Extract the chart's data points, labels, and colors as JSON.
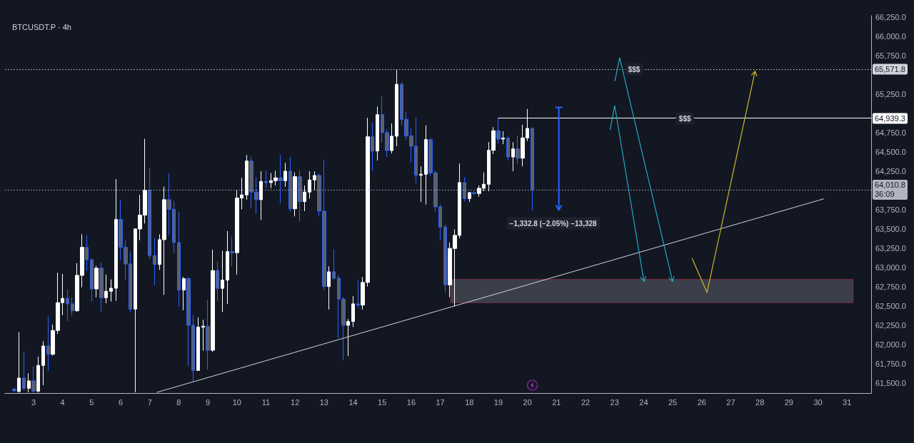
{
  "chart_data": {
    "type": "candlestick",
    "title": "BTCUSDT.P · 4h",
    "x": [
      2.333,
      2.5,
      2.667,
      2.833,
      3,
      3.167,
      3.333,
      3.5,
      3.667,
      3.833,
      4,
      4.167,
      4.333,
      4.5,
      4.667,
      4.833,
      5,
      5.167,
      5.333,
      5.5,
      5.667,
      5.833,
      6,
      6.167,
      6.333,
      6.5,
      6.667,
      6.833,
      7,
      7.167,
      7.333,
      7.5,
      7.667,
      7.833,
      8,
      8.167,
      8.333,
      8.5,
      8.667,
      8.833,
      9,
      9.167,
      9.333,
      9.5,
      9.667,
      9.833,
      10,
      10.167,
      10.333,
      10.5,
      10.667,
      10.833,
      11,
      11.167,
      11.333,
      11.5,
      11.667,
      11.833,
      12,
      12.167,
      12.333,
      12.5,
      12.667,
      12.833,
      13,
      13.167,
      13.333,
      13.5,
      13.667,
      13.833,
      14,
      14.167,
      14.333,
      14.5,
      14.667,
      14.833,
      15,
      15.167,
      15.333,
      15.5,
      15.667,
      15.833,
      16,
      16.167,
      16.333,
      16.5,
      16.667,
      16.833,
      17,
      17.167,
      17.333,
      17.5,
      17.667,
      17.833,
      18,
      18.167,
      18.333,
      18.5,
      18.667,
      18.833,
      19,
      19.167,
      19.333,
      19.5,
      19.667,
      19.833,
      20,
      20.167
    ],
    "ohlc": [
      [
        61420,
        61440,
        61385,
        61400
      ],
      [
        61390,
        62160,
        61375,
        61565
      ],
      [
        61565,
        61905,
        61410,
        61432
      ],
      [
        61432,
        61627,
        61380,
        61528
      ],
      [
        61528,
        61719,
        61375,
        61395
      ],
      [
        61395,
        61843,
        61375,
        61729
      ],
      [
        61729,
        62043,
        61472,
        61981
      ],
      [
        61981,
        62368,
        61657,
        61873
      ],
      [
        61873,
        62259,
        61858,
        62182
      ],
      [
        62182,
        62932,
        62136,
        62543
      ],
      [
        62543,
        62917,
        62382,
        62599
      ],
      [
        62599,
        62713,
        62305,
        62528
      ],
      [
        62528,
        62614,
        62377,
        62438
      ],
      [
        62438,
        63056,
        62425,
        62898
      ],
      [
        62898,
        63432,
        62744,
        63262
      ],
      [
        63262,
        63417,
        62954,
        63099
      ],
      [
        63099,
        63120,
        62558,
        62722
      ],
      [
        62722,
        63021,
        62614,
        62991
      ],
      [
        62991,
        63062,
        62429,
        62608
      ],
      [
        62608,
        62907,
        62537,
        62691
      ],
      [
        62691,
        62845,
        62558,
        62731
      ],
      [
        62731,
        64148,
        62567,
        63623
      ],
      [
        63623,
        63880,
        63093,
        63262
      ],
      [
        63262,
        63355,
        62845,
        63046
      ],
      [
        63046,
        63206,
        62420,
        62460
      ],
      [
        62460,
        63509,
        61380,
        63500
      ],
      [
        63500,
        63942,
        63355,
        63679
      ],
      [
        63679,
        64670,
        63571,
        64003
      ],
      [
        64003,
        64296,
        63108,
        63155
      ],
      [
        63155,
        63386,
        62769,
        63040
      ],
      [
        63040,
        63432,
        62969,
        63361
      ],
      [
        63361,
        64049,
        62645,
        63880
      ],
      [
        63880,
        64219,
        63417,
        63756
      ],
      [
        63756,
        63864,
        63185,
        63324
      ],
      [
        63324,
        63725,
        62491,
        62707
      ],
      [
        62707,
        62877,
        62444,
        62855
      ],
      [
        62855,
        62877,
        61719,
        62250
      ],
      [
        62250,
        62382,
        61519,
        61664
      ],
      [
        61664,
        62352,
        61660,
        62225
      ],
      [
        62225,
        62321,
        61919,
        62238
      ],
      [
        62238,
        62583,
        61673,
        61926
      ],
      [
        61926,
        63231,
        61905,
        62960
      ],
      [
        62960,
        63077,
        62567,
        62729
      ],
      [
        62729,
        63216,
        62423,
        62836
      ],
      [
        62836,
        63472,
        62528,
        63206
      ],
      [
        63206,
        63401,
        63016,
        63192
      ],
      [
        63192,
        64003,
        62907,
        63901
      ],
      [
        63901,
        64164,
        63756,
        63942
      ],
      [
        63942,
        64460,
        63880,
        64382
      ],
      [
        64382,
        64435,
        63771,
        63979
      ],
      [
        63979,
        64173,
        63694,
        63880
      ],
      [
        63880,
        64250,
        63617,
        64117
      ],
      [
        64117,
        64256,
        64030,
        64102
      ],
      [
        64102,
        64225,
        64030,
        64127
      ],
      [
        64127,
        64256,
        64065,
        64164
      ],
      [
        64164,
        64460,
        63833,
        64127
      ],
      [
        64127,
        64358,
        64049,
        64250
      ],
      [
        64250,
        64435,
        63725,
        63762
      ],
      [
        63762,
        64234,
        63664,
        64179
      ],
      [
        64179,
        64266,
        63602,
        63855
      ],
      [
        63855,
        64065,
        63731,
        63979
      ],
      [
        63979,
        64250,
        63895,
        64136
      ],
      [
        64136,
        64250,
        64003,
        64194
      ],
      [
        64194,
        64220,
        63664,
        63731
      ],
      [
        63731,
        64398,
        62706,
        62753
      ],
      [
        62753,
        63016,
        62454,
        62944
      ],
      [
        62944,
        63238,
        62840,
        62861
      ],
      [
        62861,
        62900,
        62090,
        62590
      ],
      [
        62590,
        62620,
        61796,
        62250
      ],
      [
        62250,
        62330,
        61849,
        62299
      ],
      [
        62299,
        62630,
        62229,
        62528
      ],
      [
        62528,
        62836,
        62480,
        62512
      ],
      [
        62512,
        62877,
        62454,
        62806
      ],
      [
        62806,
        64944,
        62753,
        64697
      ],
      [
        64697,
        64883,
        64256,
        64512
      ],
      [
        64512,
        65090,
        64389,
        64984
      ],
      [
        64984,
        65222,
        64620,
        64750
      ],
      [
        64750,
        64790,
        64435,
        64518
      ],
      [
        64518,
        64870,
        64480,
        64704
      ],
      [
        64704,
        65571.8,
        64574,
        65377
      ],
      [
        65377,
        65410,
        64852,
        64923
      ],
      [
        64923,
        65021,
        64651,
        64707
      ],
      [
        64707,
        64806,
        64358,
        64574
      ],
      [
        64574,
        64944,
        64095,
        64197
      ],
      [
        64197,
        64312,
        63849,
        64210
      ],
      [
        64210,
        64843,
        63818,
        64660
      ],
      [
        64660,
        64680,
        64180,
        64229
      ],
      [
        64229,
        64260,
        63725,
        63787
      ],
      [
        63787,
        63820,
        63355,
        63525
      ],
      [
        63525,
        63560,
        62676,
        62775
      ],
      [
        62775,
        63324,
        62614,
        63247
      ],
      [
        63247,
        63494,
        62491,
        63417
      ],
      [
        63417,
        64349,
        63380,
        64102
      ],
      [
        64102,
        64173,
        63860,
        63895
      ],
      [
        63895,
        63980,
        63849,
        63972
      ],
      [
        63972,
        63990,
        63940,
        63960
      ],
      [
        63960,
        64065,
        63920,
        64028
      ],
      [
        64028,
        64234,
        63990,
        64080
      ],
      [
        64080,
        64627,
        63990,
        64521
      ],
      [
        64521,
        64821,
        64472,
        64775
      ],
      [
        64775,
        64939.3,
        64605,
        64667
      ],
      [
        64667,
        64768,
        64600,
        64680
      ],
      [
        64680,
        64700,
        64390,
        64435
      ],
      [
        64435,
        64627,
        64250,
        64540
      ],
      [
        64540,
        64713,
        64340,
        64419
      ],
      [
        64419,
        64852,
        64312,
        64682
      ],
      [
        64682,
        65058,
        64640,
        64805
      ],
      [
        64805,
        64820,
        63741,
        64010.8
      ]
    ],
    "colors": [
      "#2962ff",
      "#ffffff",
      "#2962ff",
      "#ffffff",
      "#2962ff",
      "#ffffff",
      "#ffffff",
      "#2962ff",
      "#ffffff",
      "#ffffff",
      "#ffffff",
      "#2962ff",
      "#2962ff",
      "#ffffff",
      "#ffffff",
      "#2962ff",
      "#2962ff",
      "#ffffff",
      "#2962ff",
      "#ffffff",
      "#ffffff",
      "#ffffff",
      "#2962ff",
      "#2962ff",
      "#2962ff",
      "#ffffff",
      "#ffffff",
      "#ffffff",
      "#2962ff",
      "#2962ff",
      "#ffffff",
      "#ffffff",
      "#2962ff",
      "#2962ff",
      "#2962ff",
      "#ffffff",
      "#2962ff",
      "#2962ff",
      "#ffffff",
      "#ffffff",
      "#2962ff",
      "#ffffff",
      "#2962ff",
      "#ffffff",
      "#ffffff",
      "#2962ff",
      "#ffffff",
      "#ffffff",
      "#ffffff",
      "#2962ff",
      "#2962ff",
      "#ffffff",
      "#2962ff",
      "#ffffff",
      "#ffffff",
      "#2962ff",
      "#ffffff",
      "#2962ff",
      "#ffffff",
      "#2962ff",
      "#ffffff",
      "#ffffff",
      "#ffffff",
      "#2962ff",
      "#2962ff",
      "#ffffff",
      "#2962ff",
      "#2962ff",
      "#2962ff",
      "#ffffff",
      "#ffffff",
      "#2962ff",
      "#ffffff",
      "#ffffff",
      "#2962ff",
      "#ffffff",
      "#2962ff",
      "#2962ff",
      "#ffffff",
      "#ffffff",
      "#2962ff",
      "#2962ff",
      "#2962ff",
      "#2962ff",
      "#ffffff",
      "#ffffff",
      "#2962ff",
      "#2962ff",
      "#2962ff",
      "#2962ff",
      "#ffffff",
      "#ffffff",
      "#ffffff",
      "#2962ff",
      "#ffffff",
      "#2962ff",
      "#ffffff",
      "#ffffff",
      "#ffffff",
      "#ffffff",
      "#2962ff",
      "#ffffff",
      "#2962ff",
      "#ffffff",
      "#2962ff",
      "#ffffff",
      "#ffffff",
      "#2962ff"
    ],
    "series": [
      {
        "type": "line",
        "x": [
          7.25,
          30.19
        ],
        "values": [
          61380,
          63890
        ],
        "color": "#d1d4dc",
        "line_style": "solid",
        "marker": "none"
      },
      {
        "type": "line",
        "x": [
          19,
          31.83
        ],
        "values": [
          64939.3,
          64939.3
        ],
        "color": "#ffffff",
        "line_style": "solid",
        "marker": "none",
        "value_labels": [
          null,
          "64,939.3"
        ]
      }
    ],
    "ref_lines": [
      {
        "axis": "y",
        "value": 65571.8,
        "label": "65,571.8",
        "color": "#d1d4dc",
        "line_style": "dotted"
      },
      {
        "axis": "y",
        "value": 64010.8,
        "label": "64,010.8\n36:09",
        "color": "#b2b5be",
        "line_style": "dotted"
      }
    ],
    "annotations": [
      {
        "text": "$$$",
        "x": 23.67,
        "y": 65571.8
      },
      {
        "text": "$$$",
        "x": 25.42,
        "y": 64939.3
      },
      "−1,332.8 (−2.05%) −13,328"
    ],
    "xlim": [
      2.017,
      31.83
    ],
    "xticks": [
      3,
      4,
      5,
      6,
      7,
      8,
      9,
      10,
      11,
      12,
      13,
      14,
      15,
      16,
      17,
      18,
      19,
      20,
      21,
      22,
      23,
      24,
      25,
      26,
      27,
      28,
      29,
      30,
      31
    ],
    "ylim": [
      61370,
      66268
    ],
    "yticks": [
      {
        "value": 61500,
        "label": "61,500.0"
      },
      {
        "value": 61750,
        "label": "61,750.0"
      },
      {
        "value": 62000,
        "label": "62,000.0"
      },
      {
        "value": 62250,
        "label": "62,250.0"
      },
      {
        "value": 62500,
        "label": "62,500.0"
      },
      {
        "value": 62750,
        "label": "62,750.0"
      },
      {
        "value": 63000,
        "label": "63,000.0"
      },
      {
        "value": 63250,
        "label": "63,250.0"
      },
      {
        "value": 63500,
        "label": "63,500.0"
      },
      {
        "value": 63750,
        "label": "63,750.0"
      },
      {
        "value": 64250,
        "label": "64,250.0"
      },
      {
        "value": 64500,
        "label": "64,500.0"
      },
      {
        "value": 64750,
        "label": "64,750.0"
      },
      {
        "value": 65250,
        "label": "65,250.0"
      },
      {
        "value": 65750,
        "label": "65,750.0"
      },
      {
        "value": 66000,
        "label": "66,000.0"
      },
      {
        "value": 66250,
        "label": "66,250.0"
      }
    ]
  }
}
